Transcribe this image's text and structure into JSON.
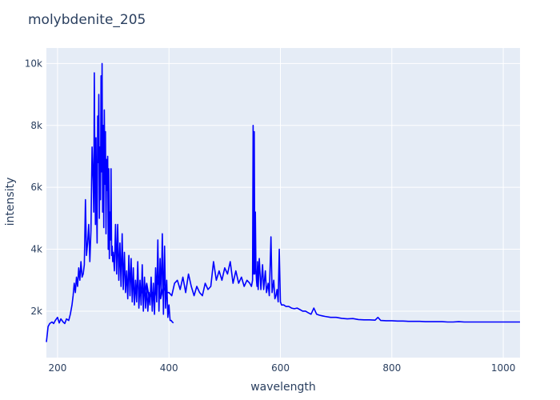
{
  "chart_data": {
    "type": "line",
    "title": "molybdenite_205",
    "xlabel": "wavelength",
    "ylabel": "intensity",
    "xlim": [
      180,
      1030
    ],
    "ylim": [
      500,
      10500
    ],
    "x_ticks": [
      200,
      400,
      600,
      800,
      1000
    ],
    "x_tick_labels": [
      "200",
      "400",
      "600",
      "800",
      "1000"
    ],
    "y_ticks": [
      2000,
      4000,
      6000,
      8000,
      10000
    ],
    "y_tick_labels": [
      "2k",
      "4k",
      "6k",
      "8k",
      "10k"
    ],
    "grid": true,
    "colors": {
      "line": "#0000ff",
      "plot_bg": "#e5ecf6",
      "grid": "#ffffff",
      "text": "#2a3f5f"
    },
    "series": [
      {
        "segments": [
          {
            "x": [
              180,
              183,
              186,
              190,
              193,
              196,
              200,
              203,
              206,
              210,
              213,
              216,
              220,
              223,
              226,
              228,
              230,
              232,
              234,
              236,
              238,
              240,
              242,
              244,
              246,
              248,
              250,
              252,
              254,
              256,
              258,
              260,
              262,
              264,
              265,
              266,
              267,
              268,
              269,
              270,
              271,
              272,
              273,
              274,
              275,
              276,
              277,
              278,
              279,
              280,
              281,
              282,
              283,
              284,
              285,
              286,
              287,
              288,
              289,
              290,
              291,
              292,
              293,
              294,
              295,
              296,
              297,
              298,
              299,
              300,
              302,
              304,
              306,
              308,
              310,
              312,
              314,
              316,
              318,
              320,
              322,
              324,
              326,
              328,
              330,
              332,
              334,
              336,
              338,
              340,
              342,
              344,
              346,
              348,
              350,
              352,
              354,
              356,
              358,
              360,
              362,
              364,
              366,
              368,
              370,
              372,
              374,
              376,
              378,
              380,
              382,
              384,
              386,
              388,
              390,
              392,
              394,
              396,
              398,
              400,
              402,
              404,
              406,
              408
            ],
            "y": [
              1000,
              1500,
              1600,
              1650,
              1600,
              1700,
              1800,
              1620,
              1750,
              1650,
              1600,
              1750,
              1700,
              1900,
              2200,
              2500,
              2900,
              2600,
              3100,
              2800,
              3400,
              3000,
              3600,
              3100,
              3200,
              3500,
              5600,
              3800,
              4200,
              4800,
              3600,
              4600,
              7300,
              6200,
              5200,
              9700,
              6600,
              4800,
              7600,
              5400,
              4200,
              8300,
              6800,
              9000,
              5000,
              7300,
              5600,
              9600,
              6500,
              10000,
              5200,
              8000,
              4700,
              8500,
              6100,
              7800,
              4500,
              6900,
              5900,
              7000,
              4000,
              6600,
              3700,
              5200,
              4300,
              6600,
              3800,
              4100,
              3600,
              3900,
              3300,
              4800,
              3200,
              4800,
              3000,
              4200,
              2800,
              4500,
              2700,
              3900,
              2600,
              3300,
              2400,
              3800,
              2500,
              3700,
              2300,
              3400,
              2200,
              3000,
              2300,
              3600,
              2100,
              3000,
              2200,
              3500,
              2000,
              3100,
              2100,
              2800,
              2000,
              2600,
              2200,
              3100,
              2000,
              2900,
              1900,
              3400,
              2300,
              4300,
              2000,
              3700,
              2500,
              4500,
              1900,
              4100,
              2100,
              3000,
              1800,
              2200,
              1700,
              1700,
              1650,
              1620
            ]
          },
          {
            "x": [
              350,
              355,
              360,
              365,
              370,
              375,
              380,
              385,
              390,
              395,
              400,
              405,
              410,
              415,
              420,
              425,
              430,
              435,
              440,
              445,
              450,
              455,
              460,
              465,
              470,
              475,
              480,
              485,
              490,
              495,
              500,
              505,
              510,
              515,
              520,
              525,
              530,
              535,
              540,
              545,
              548,
              550,
              551,
              552,
              553,
              554,
              555,
              556,
              557,
              558,
              559,
              560,
              562,
              565,
              568,
              570,
              573,
              575,
              578,
              580,
              583,
              585,
              588,
              590,
              592,
              594,
              596,
              598,
              600,
              602,
              604,
              606,
              610,
              615,
              620,
              625,
              630,
              635,
              640,
              645,
              650,
              655,
              660,
              665,
              670,
              675,
              680,
              690,
              700,
              710,
              720,
              730,
              740,
              750,
              760,
              770,
              775,
              780,
              790,
              800,
              810,
              820,
              830,
              840,
              850,
              860,
              870,
              880,
              890,
              900,
              910,
              920,
              930,
              940,
              950,
              960,
              970,
              980,
              990,
              1000,
              1010,
              1020,
              1030
            ],
            "y": [
              2700,
              2500,
              2900,
              2400,
              2600,
              2500,
              3000,
              2400,
              2800,
              2600,
              2600,
              2500,
              2900,
              3000,
              2700,
              3100,
              2600,
              3200,
              2800,
              2500,
              2800,
              2600,
              2500,
              2900,
              2700,
              2800,
              3600,
              3000,
              3300,
              3000,
              3400,
              3200,
              3600,
              2900,
              3300,
              2900,
              3100,
              2800,
              3000,
              2900,
              2800,
              3000,
              8000,
              3200,
              7800,
              3200,
              5200,
              3400,
              3000,
              2800,
              3600,
              2700,
              3700,
              2700,
              3500,
              2700,
              3300,
              2600,
              2900,
              2500,
              4400,
              2600,
              3000,
              2400,
              2500,
              2700,
              2300,
              4000,
              2300,
              2200,
              2200,
              2200,
              2150,
              2150,
              2100,
              2080,
              2100,
              2050,
              2000,
              2000,
              1950,
              1900,
              2100,
              1900,
              1870,
              1850,
              1830,
              1800,
              1800,
              1770,
              1750,
              1760,
              1730,
              1720,
              1720,
              1710,
              1800,
              1700,
              1690,
              1690,
              1680,
              1680,
              1670,
              1670,
              1670,
              1660,
              1660,
              1660,
              1660,
              1650,
              1650,
              1660,
              1650,
              1650,
              1650,
              1650,
              1650,
              1650,
              1650,
              1650,
              1650,
              1650,
              1650
            ]
          }
        ]
      }
    ]
  }
}
